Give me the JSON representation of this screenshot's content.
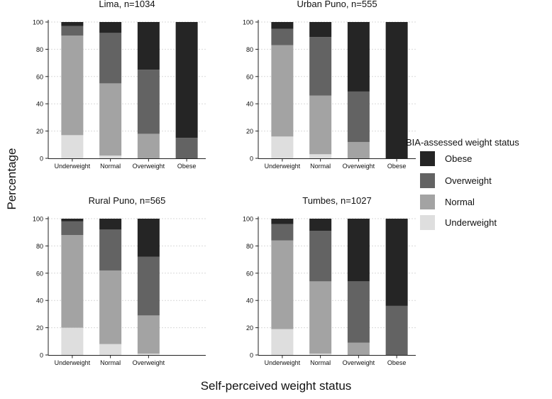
{
  "colors": {
    "Obese": "#252525",
    "Overweight": "#636363",
    "Normal": "#a3a3a3",
    "Underweight": "#dedede",
    "gridline": "#d9d9d9",
    "axis": "#222222"
  },
  "y_axis_title": "Percentage",
  "x_axis_title": "Self-perceived weight status",
  "legend": {
    "title": "BIA-assessed weight status",
    "items": [
      "Obese",
      "Overweight",
      "Normal",
      "Underweight"
    ]
  },
  "chart_data": [
    {
      "type": "bar",
      "stacked": true,
      "title": "Lima, n=1034",
      "categories": [
        "Underweight",
        "Normal",
        "Overweight",
        "Obese"
      ],
      "series": [
        {
          "name": "Underweight",
          "values": [
            17,
            2,
            0,
            0
          ]
        },
        {
          "name": "Normal",
          "values": [
            73,
            53,
            18,
            0
          ]
        },
        {
          "name": "Overweight",
          "values": [
            7,
            37,
            47,
            15
          ]
        },
        {
          "name": "Obese",
          "values": [
            3,
            8,
            35,
            85
          ]
        }
      ],
      "ylim": [
        0,
        100
      ],
      "yticks": [
        0,
        20,
        40,
        60,
        80,
        100
      ],
      "grid": true
    },
    {
      "type": "bar",
      "stacked": true,
      "title": "Urban Puno, n=555",
      "categories": [
        "Underweight",
        "Normal",
        "Overweight",
        "Obese"
      ],
      "series": [
        {
          "name": "Underweight",
          "values": [
            16,
            3,
            0,
            0
          ]
        },
        {
          "name": "Normal",
          "values": [
            67,
            43,
            12,
            0
          ]
        },
        {
          "name": "Overweight",
          "values": [
            12,
            43,
            37,
            0
          ]
        },
        {
          "name": "Obese",
          "values": [
            5,
            11,
            51,
            100
          ]
        }
      ],
      "ylim": [
        0,
        100
      ],
      "yticks": [
        0,
        20,
        40,
        60,
        80,
        100
      ],
      "grid": true
    },
    {
      "type": "bar",
      "stacked": true,
      "title": "Rural Puno, n=565",
      "categories": [
        "Underweight",
        "Normal",
        "Overweight"
      ],
      "series": [
        {
          "name": "Underweight",
          "values": [
            20,
            8,
            1
          ]
        },
        {
          "name": "Normal",
          "values": [
            68,
            54,
            28
          ]
        },
        {
          "name": "Overweight",
          "values": [
            10,
            30,
            43
          ]
        },
        {
          "name": "Obese",
          "values": [
            2,
            8,
            28
          ]
        }
      ],
      "ylim": [
        0,
        100
      ],
      "yticks": [
        0,
        20,
        40,
        60,
        80,
        100
      ],
      "grid": true
    },
    {
      "type": "bar",
      "stacked": true,
      "title": "Tumbes, n=1027",
      "categories": [
        "Underweight",
        "Normal",
        "Overweight",
        "Obese"
      ],
      "series": [
        {
          "name": "Underweight",
          "values": [
            19,
            1,
            0,
            0
          ]
        },
        {
          "name": "Normal",
          "values": [
            65,
            53,
            9,
            0
          ]
        },
        {
          "name": "Overweight",
          "values": [
            12,
            37,
            45,
            36
          ]
        },
        {
          "name": "Obese",
          "values": [
            4,
            9,
            46,
            64
          ]
        }
      ],
      "ylim": [
        0,
        100
      ],
      "yticks": [
        0,
        20,
        40,
        60,
        80,
        100
      ],
      "grid": true
    }
  ]
}
